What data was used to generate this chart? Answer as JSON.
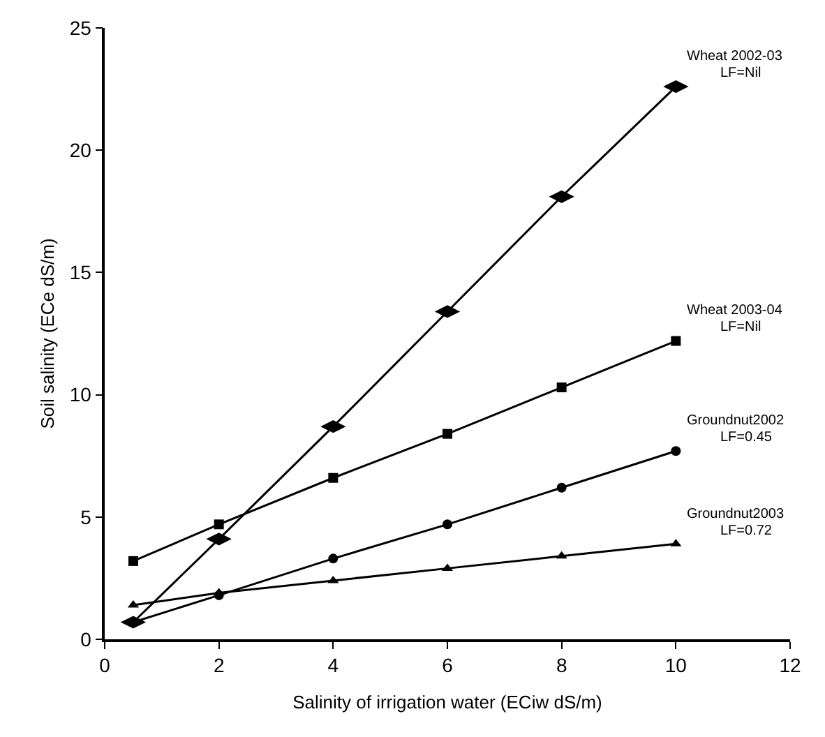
{
  "chart_data": {
    "type": "line",
    "xlabel": "Salinity of irrigation water (ECiw dS/m)",
    "ylabel": "Soil salinity (ECe dS/m)",
    "xlim": [
      0,
      12
    ],
    "xticks": [
      0,
      2,
      4,
      6,
      8,
      10,
      12
    ],
    "ylim": [
      0,
      25
    ],
    "yticks": [
      0,
      5,
      10,
      15,
      20,
      25
    ],
    "grid": false,
    "legend": false,
    "line_style": "solid",
    "x": [
      0.5,
      2,
      4,
      6,
      8,
      10
    ],
    "series": [
      {
        "name": "Wheat 2002-03",
        "color": "#000000",
        "marker": "diamond",
        "values": [
          0.7,
          4.1,
          8.7,
          13.4,
          18.1,
          22.6
        ]
      },
      {
        "name": "Wheat 2003-04",
        "color": "#000000",
        "marker": "square",
        "values": [
          3.2,
          4.7,
          6.6,
          8.4,
          10.3,
          12.2
        ]
      },
      {
        "name": "Groundnut2002",
        "color": "#000000",
        "marker": "circle",
        "values": [
          0.7,
          1.8,
          3.3,
          4.7,
          6.2,
          7.7
        ]
      },
      {
        "name": "Groundnut2003",
        "color": "#000000",
        "marker": "triangle",
        "values": [
          1.4,
          1.9,
          2.4,
          2.9,
          3.4,
          3.9
        ]
      }
    ],
    "annotations": [
      "LF=Nil",
      "LF=Nil",
      "LF=0.45",
      "LF=0.72"
    ]
  }
}
